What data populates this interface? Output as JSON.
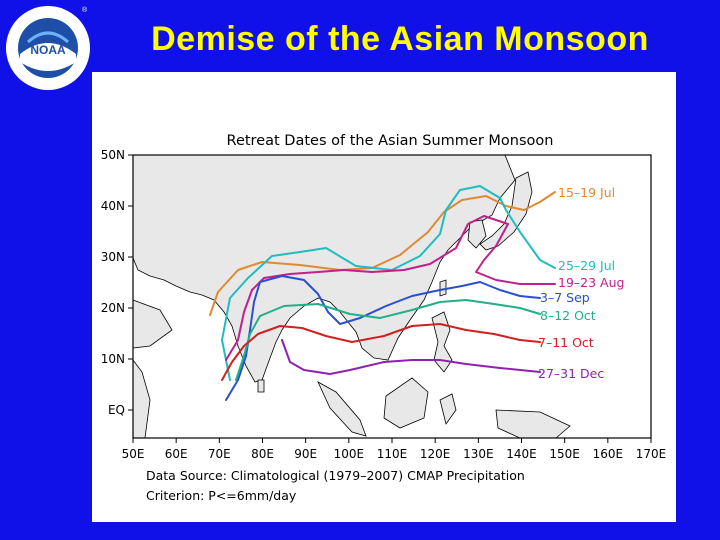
{
  "slide": {
    "title": "Demise of the Asian Monsoon",
    "logo_text": "NOAA",
    "logo_ring_text": "NATIONAL OCEANIC AND ATMOSPHERIC ADMINISTRATION · U.S. DEPARTMENT OF COMMERCE"
  },
  "map": {
    "title": "Retreat Dates of the Asian Summer Monsoon",
    "lat_labels": [
      "50N",
      "40N",
      "30N",
      "20N",
      "10N",
      "EQ"
    ],
    "lon_labels": [
      "50E",
      "60E",
      "70E",
      "80E",
      "90E",
      "100E",
      "110E",
      "120E",
      "130E",
      "140E",
      "150E",
      "160E",
      "170E"
    ],
    "source_text": "Data Source: Climatological (1979–2007) CMAP Precipitation",
    "criterion_text": "Criterion: P<=6mm/day",
    "contours": [
      {
        "label": "15–19 Jul",
        "color": "#e08a30"
      },
      {
        "label": "25–29 Jul",
        "color": "#20bcc0"
      },
      {
        "label": "19–23 Aug",
        "color": "#c0208c"
      },
      {
        "label": "3–7 Sep",
        "color": "#2a4fd0"
      },
      {
        "label": "8–12 Oct",
        "color": "#20b088"
      },
      {
        "label": "7–11 Oct",
        "color": "#d02020"
      },
      {
        "label": "27–31 Dec",
        "color": "#9020b0"
      }
    ]
  },
  "colors": {
    "background": "#1010e8",
    "title": "#ffff00",
    "land": "#e8e8e8"
  }
}
